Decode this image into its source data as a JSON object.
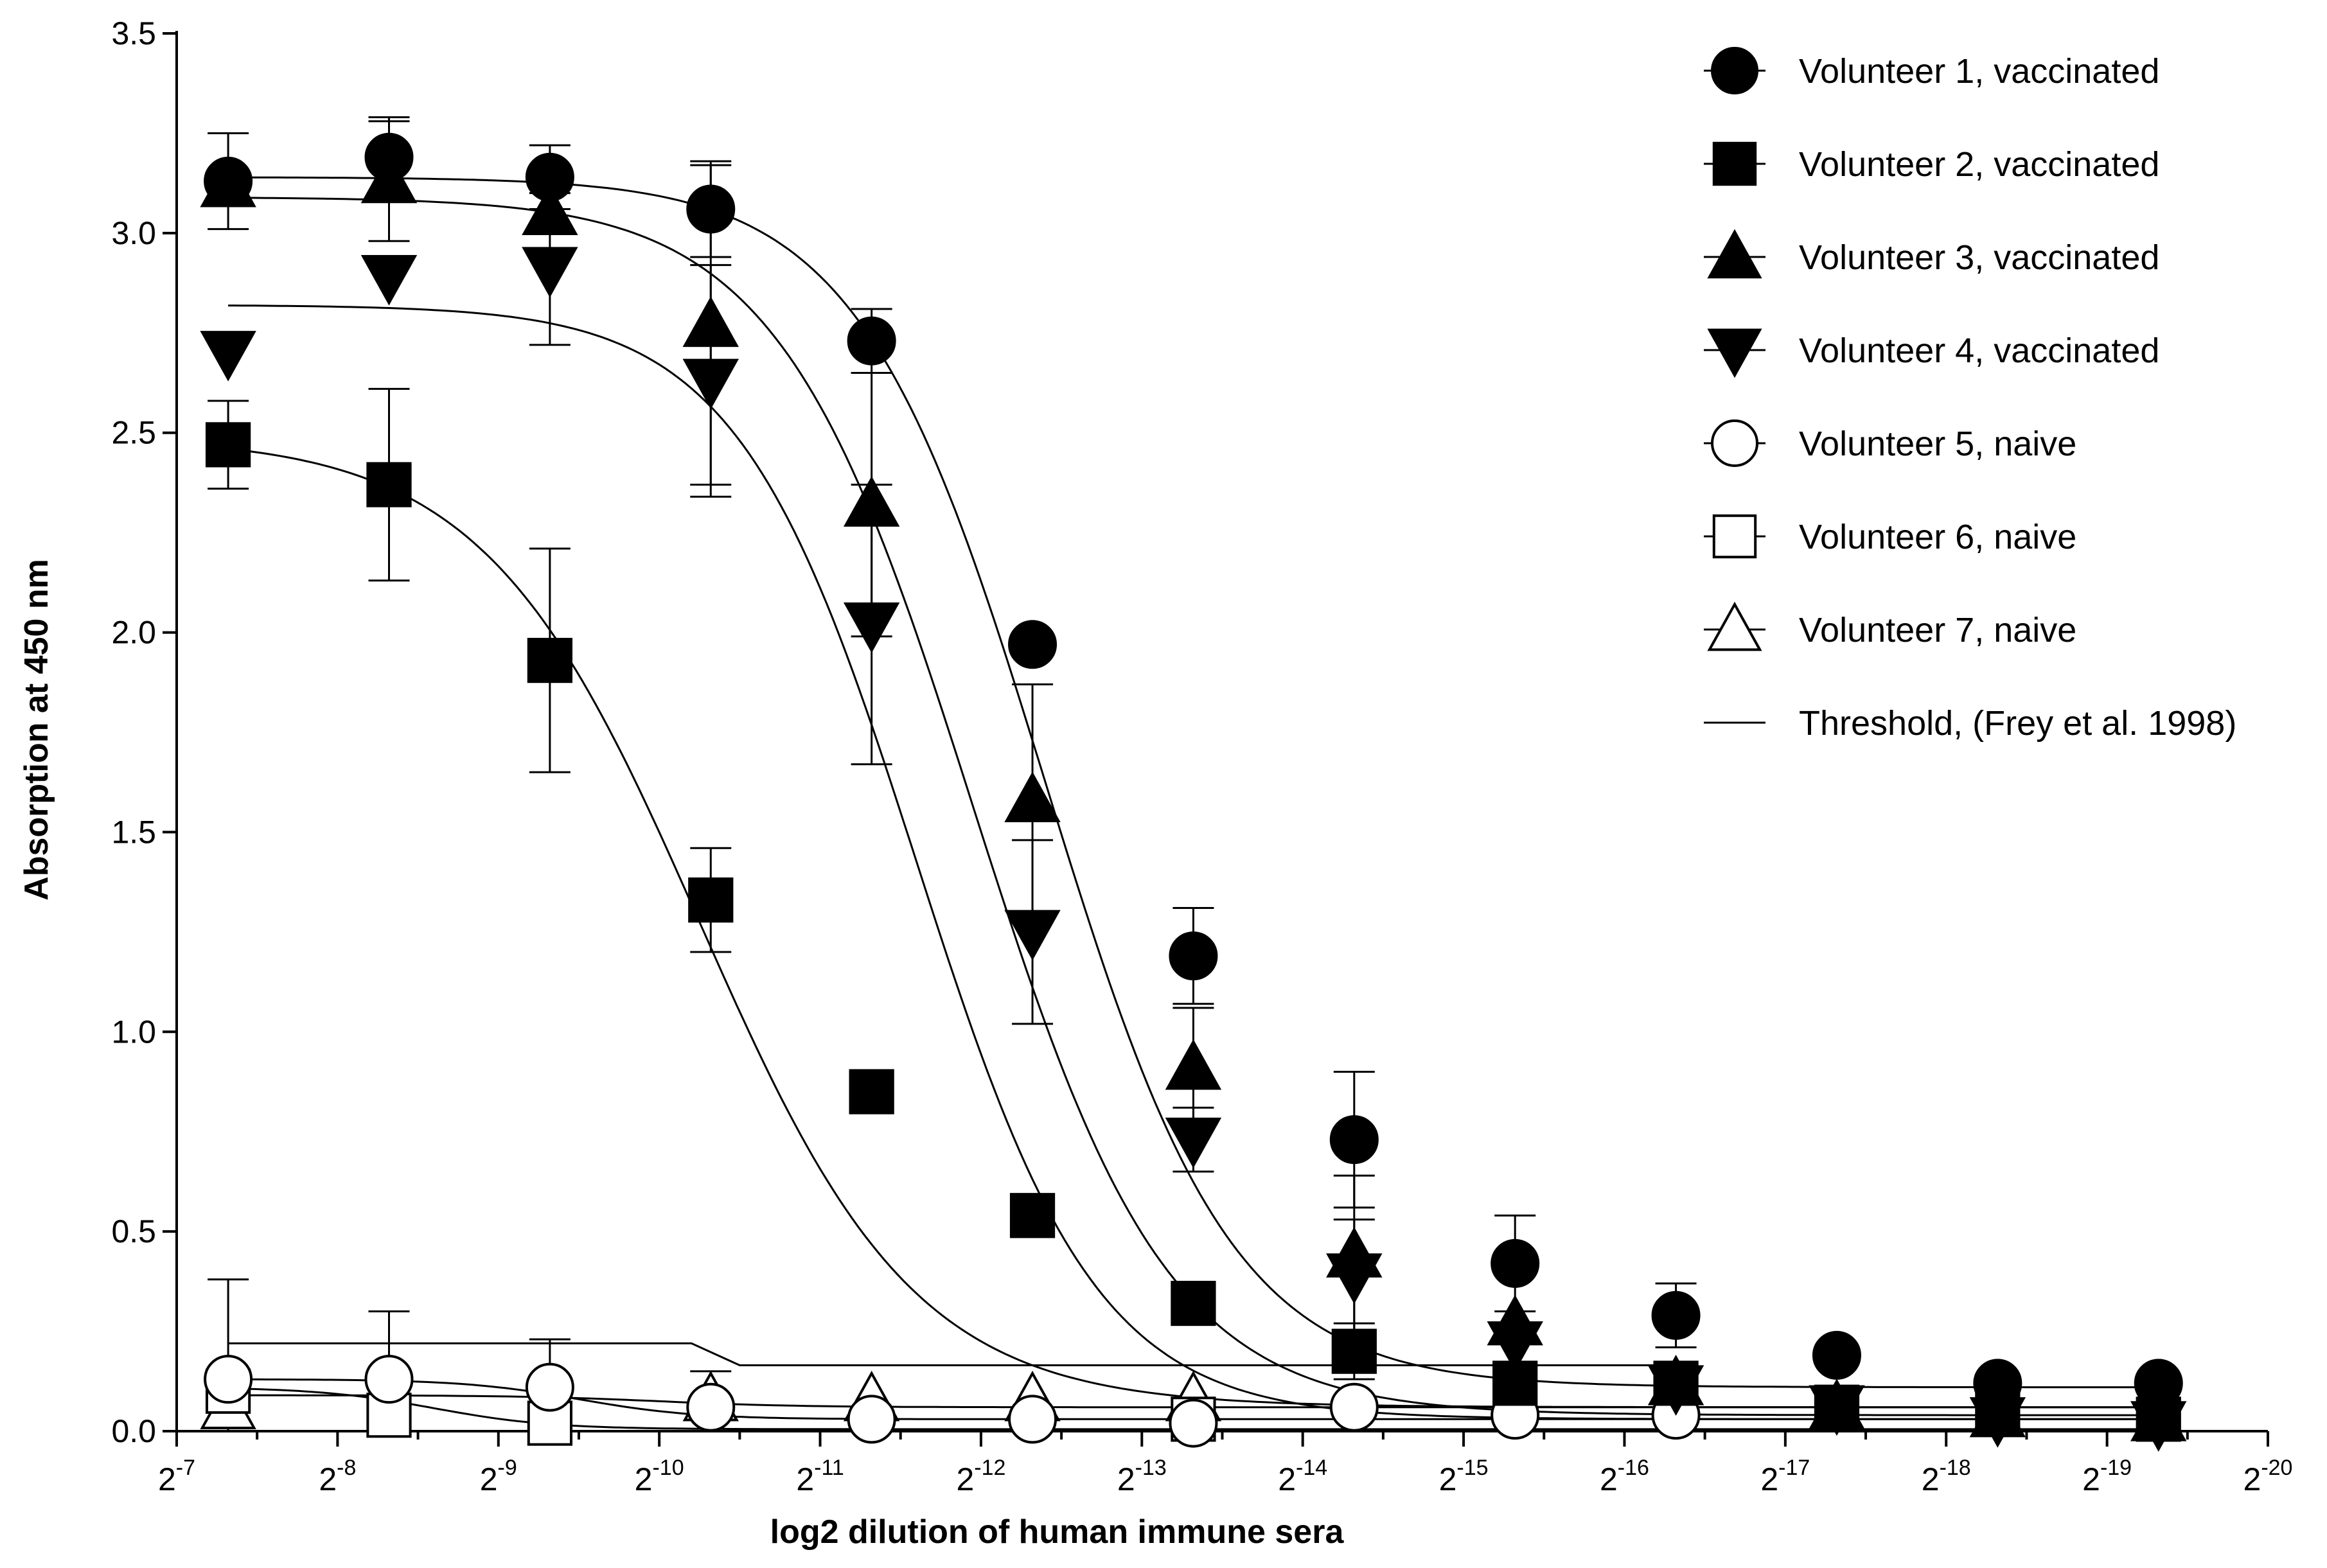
{
  "chart_data": {
    "type": "scatter",
    "title": "",
    "xlabel": "log2 dilution of human immune sera",
    "ylabel": "Absorption at 450 nm",
    "xlim": [
      7,
      20
    ],
    "ylim": [
      0,
      3.5
    ],
    "xticks": [
      {
        "value": 7,
        "base": "2",
        "exp": "-7"
      },
      {
        "value": 8,
        "base": "2",
        "exp": "-8"
      },
      {
        "value": 9,
        "base": "2",
        "exp": "-9"
      },
      {
        "value": 10,
        "base": "2",
        "exp": "-10"
      },
      {
        "value": 11,
        "base": "2",
        "exp": "-11"
      },
      {
        "value": 12,
        "base": "2",
        "exp": "-12"
      },
      {
        "value": 13,
        "base": "2",
        "exp": "-13"
      },
      {
        "value": 14,
        "base": "2",
        "exp": "-14"
      },
      {
        "value": 15,
        "base": "2",
        "exp": "-15"
      },
      {
        "value": 16,
        "base": "2",
        "exp": "-16"
      },
      {
        "value": 17,
        "base": "2",
        "exp": "-17"
      },
      {
        "value": 18,
        "base": "2",
        "exp": "-18"
      },
      {
        "value": 19,
        "base": "2",
        "exp": "-19"
      },
      {
        "value": 20,
        "base": "2",
        "exp": "-20"
      }
    ],
    "yticks": [
      {
        "value": 0,
        "label": "0.0"
      },
      {
        "value": 0.5,
        "label": "0.5"
      },
      {
        "value": 1.0,
        "label": "1.0"
      },
      {
        "value": 1.5,
        "label": "1.5"
      },
      {
        "value": 2.0,
        "label": "2.0"
      },
      {
        "value": 2.5,
        "label": "2.5"
      },
      {
        "value": 3.0,
        "label": "3.0"
      },
      {
        "value": 3.5,
        "label": "3.5"
      }
    ],
    "legend_position": "top-right",
    "x": [
      7.32,
      8.32,
      9.32,
      10.32,
      11.32,
      12.32,
      13.32,
      14.32,
      15.32,
      16.32,
      17.32,
      18.32,
      19.32
    ],
    "series": [
      {
        "name": "Volunteer 1, vaccinated",
        "marker": "circle",
        "filled": true,
        "values": [
          3.13,
          3.19,
          3.14,
          3.06,
          2.73,
          1.97,
          1.19,
          0.73,
          0.42,
          0.29,
          0.19,
          0.12,
          0.12
        ],
        "errors": [
          0.12,
          0.1,
          0.08,
          0.12,
          0.08,
          0.0,
          0.12,
          0.17,
          0.12,
          0.08,
          0.0,
          0.0,
          0.0
        ],
        "fit": {
          "top": 3.14,
          "bottom": 0.11,
          "mid": 12.4,
          "slope": 0.75
        }
      },
      {
        "name": "Volunteer 2, vaccinated",
        "marker": "square",
        "filled": true,
        "values": [
          2.47,
          2.37,
          1.93,
          1.33,
          0.85,
          0.54,
          0.32,
          0.2,
          0.12,
          0.12,
          0.06,
          0.05,
          0.03
        ],
        "errors": [
          0.11,
          0.24,
          0.28,
          0.13,
          0.0,
          0.0,
          0.0,
          0.07,
          0.0,
          0.0,
          0.0,
          0.0,
          0.0
        ],
        "fit": {
          "top": 2.49,
          "bottom": 0.06,
          "mid": 10.25,
          "slope": 0.65
        }
      },
      {
        "name": "Volunteer 3, vaccinated",
        "marker": "triangle-up",
        "filled": true,
        "values": [
          3.12,
          3.13,
          3.05,
          2.77,
          2.32,
          1.58,
          0.91,
          0.44,
          0.27,
          0.12,
          0.06,
          0.04,
          0.03
        ],
        "errors": [
          0.0,
          0.15,
          0.0,
          0.4,
          0.33,
          0.29,
          0.15,
          0.2,
          0.0,
          0.0,
          0.0,
          0.0,
          0.0
        ],
        "fit": {
          "top": 3.09,
          "bottom": 0.04,
          "mid": 11.95,
          "slope": 0.72
        }
      },
      {
        "name": "Volunteer 4, vaccinated",
        "marker": "triangle-down",
        "filled": true,
        "values": [
          2.7,
          2.89,
          2.91,
          2.63,
          2.02,
          1.25,
          0.73,
          0.39,
          0.22,
          0.11,
          0.06,
          0.03,
          0.02
        ],
        "errors": [
          0.0,
          0.0,
          0.19,
          0.29,
          0.35,
          0.23,
          0.08,
          0.14,
          0.0,
          0.0,
          0.0,
          0.0,
          0.0
        ],
        "fit": {
          "top": 2.82,
          "bottom": 0.03,
          "mid": 11.6,
          "slope": 0.78
        }
      },
      {
        "name": "Volunteer 5, naive",
        "marker": "circle",
        "filled": false,
        "values": [
          0.13,
          0.13,
          0.11,
          0.06,
          0.03,
          0.03,
          0.02,
          0.06,
          0.04,
          0.04,
          null,
          null,
          null
        ],
        "errors": [
          0.25,
          0.17,
          0.12,
          0.09,
          0.0,
          0.0,
          0.0,
          0.0,
          0.0,
          0.0,
          0,
          0,
          0
        ],
        "fit": {
          "top": 0.13,
          "bottom": 0.03,
          "mid": 9.5,
          "slope": 1.2
        }
      },
      {
        "name": "Volunteer 6, naive",
        "marker": "square",
        "filled": false,
        "values": [
          0.1,
          0.04,
          0.02,
          null,
          null,
          null,
          0.03,
          null,
          null,
          null,
          null,
          null,
          null
        ],
        "errors": [
          0.0,
          0.0,
          0.0,
          0,
          0,
          0,
          0.0,
          0,
          0,
          0,
          0,
          0,
          0
        ],
        "fit": {
          "top": 0.11,
          "bottom": 0.005,
          "mid": 8.6,
          "slope": 1.2
        }
      },
      {
        "name": "Volunteer 7, naive",
        "marker": "triangle-up",
        "filled": false,
        "values": [
          0.06,
          null,
          null,
          0.08,
          0.08,
          0.08,
          0.08,
          null,
          null,
          null,
          null,
          null,
          null
        ],
        "errors": [
          0.0,
          0,
          0,
          0.0,
          0.0,
          0.0,
          0.0,
          0,
          0,
          0,
          0,
          0,
          0
        ],
        "fit": {
          "top": 0.09,
          "bottom": 0.06,
          "mid": 10.0,
          "slope": 1.0
        }
      }
    ],
    "threshold": {
      "name": "Threshold, (Frey et al. 1998)",
      "segments": [
        [
          7.32,
          0.22
        ],
        [
          10.2,
          0.22
        ],
        [
          10.5,
          0.165
        ],
        [
          16.3,
          0.165
        ]
      ]
    }
  }
}
